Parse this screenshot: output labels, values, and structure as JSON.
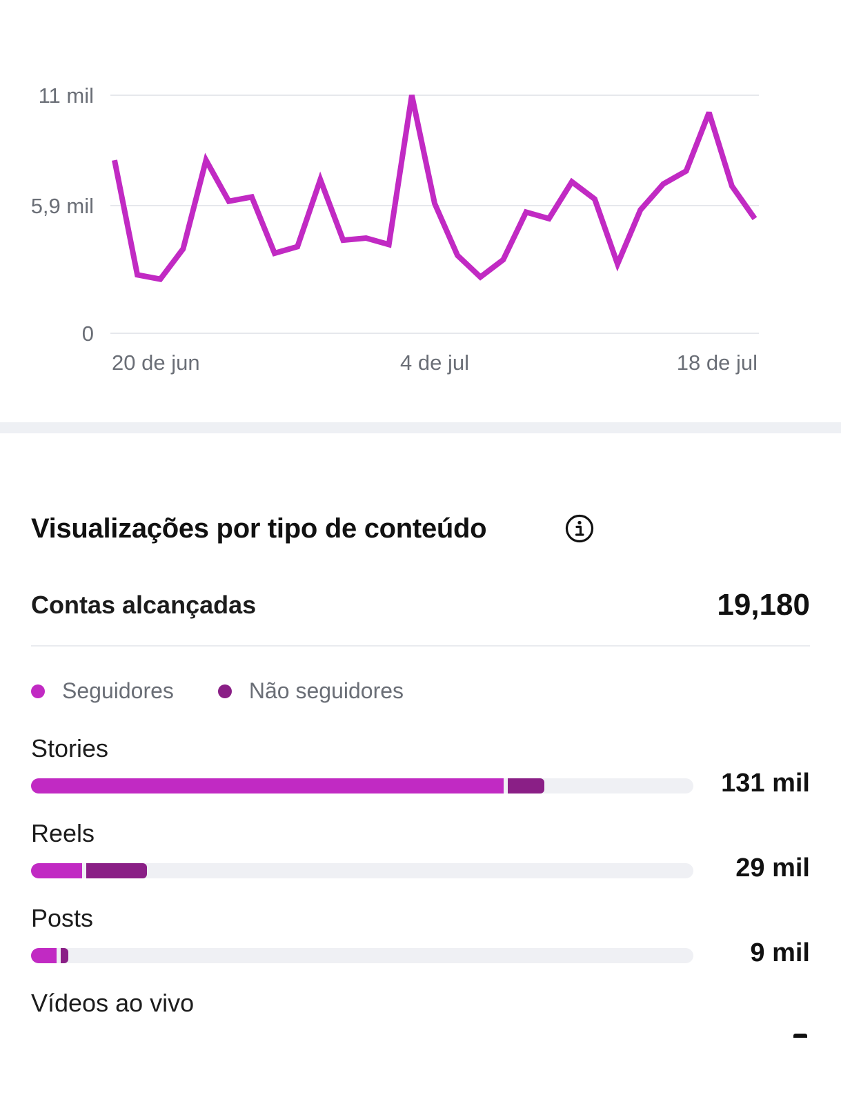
{
  "colors": {
    "line": "#c12ac3",
    "followers": "#c12ac3",
    "non_followers": "#8a1f86",
    "grid": "#e6e8ec",
    "axis_text": "#6a6e76",
    "track": "#eff0f4"
  },
  "chart_data": {
    "type": "line",
    "y_ticks": [
      "11 mil",
      "5,9 mil",
      "0"
    ],
    "y_tick_values": [
      11000,
      5900,
      0
    ],
    "ylim": [
      0,
      11000
    ],
    "x_ticks": [
      "20 de jun",
      "4 de jul",
      "18 de jul"
    ],
    "x_tick_index": [
      0,
      14,
      28
    ],
    "grid": true,
    "series": [
      {
        "values": [
          8000,
          2700,
          2500,
          3900,
          8000,
          6100,
          6300,
          3700,
          4000,
          7100,
          4300,
          4400,
          4100,
          11000,
          6000,
          3600,
          2600,
          3400,
          5600,
          5300,
          7000,
          6200,
          3200,
          5700,
          6900,
          7500,
          10200,
          6800,
          5300
        ]
      }
    ]
  },
  "section": {
    "title": "Visualizações por tipo de conteúdo",
    "info_icon": "info-icon"
  },
  "reach": {
    "label": "Contas alcançadas",
    "value": "19,180"
  },
  "legend": {
    "followers": "Seguidores",
    "non_followers": "Não seguidores"
  },
  "content_types": [
    {
      "label": "Stories",
      "value": "131 mil",
      "followers_fraction": 0.717,
      "non_followers_fraction": 0.058
    },
    {
      "label": "Reels",
      "value": "29 mil",
      "followers_fraction": 0.08,
      "non_followers_fraction": 0.095
    },
    {
      "label": "Posts",
      "value": "9 mil",
      "followers_fraction": 0.042,
      "non_followers_fraction": 0.014
    },
    {
      "label": "Vídeos ao vivo",
      "value": "",
      "followers_fraction": 0,
      "non_followers_fraction": 0
    }
  ]
}
